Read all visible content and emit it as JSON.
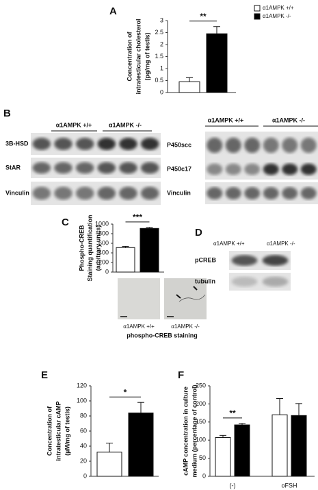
{
  "chart_data": [
    {
      "label": "A",
      "type": "bar",
      "ylabel": [
        "Concentration of",
        "intratesticular cholesterol",
        "(pg/mg of testis)"
      ],
      "categories": [
        null
      ],
      "series": [
        {
          "name": "α1AMPK +/+",
          "color": "#ffffff",
          "values": [
            0.45
          ],
          "errors": [
            0.17
          ]
        },
        {
          "name": "α1AMPK -/-",
          "color": "#000000",
          "values": [
            2.45
          ],
          "errors": [
            0.3
          ]
        }
      ],
      "ylim": [
        0,
        3
      ],
      "yticks": [
        0,
        0.5,
        1,
        1.5,
        2,
        2.5,
        3
      ],
      "significance": "**"
    },
    {
      "label": "C",
      "type": "bar",
      "ylabel": [
        "Phospho-CREB",
        "Staining quantification",
        "(arbitrary units)"
      ],
      "categories": [
        null
      ],
      "series": [
        {
          "color": "#ffffff",
          "values": [
            510
          ],
          "errors": [
            25
          ]
        },
        {
          "color": "#000000",
          "values": [
            910
          ],
          "errors": [
            20
          ]
        }
      ],
      "ylim": [
        0,
        1000
      ],
      "yticks": [
        0,
        200,
        400,
        600,
        800,
        1000
      ],
      "significance": "***"
    },
    {
      "label": "E",
      "type": "bar",
      "ylabel": [
        "Concentration of",
        "intratesticular cAMP",
        "(µM/mg of testis)"
      ],
      "categories": [
        null
      ],
      "series": [
        {
          "color": "#ffffff",
          "values": [
            32
          ],
          "errors": [
            12
          ]
        },
        {
          "color": "#000000",
          "values": [
            84
          ],
          "errors": [
            14
          ]
        }
      ],
      "ylim": [
        0,
        120
      ],
      "yticks": [
        0,
        20,
        40,
        60,
        80,
        100,
        120
      ],
      "significance": "*"
    },
    {
      "label": "F",
      "type": "bar",
      "ylabel": [
        "cAMP concentration in culture",
        "medium (percentage of control)"
      ],
      "categories": [
        "(-)",
        "oFSH"
      ],
      "series": [
        {
          "color": "#ffffff",
          "values": [
            107,
            170
          ],
          "errors": [
            6,
            45
          ]
        },
        {
          "color": "#000000",
          "values": [
            142,
            168
          ],
          "errors": [
            4,
            33
          ]
        }
      ],
      "ylim": [
        0,
        250
      ],
      "yticks": [
        0,
        50,
        100,
        150,
        200,
        250
      ],
      "significance": "**"
    }
  ],
  "blot_b": {
    "label": "B",
    "left": {
      "groups": [
        "α1AMPK +/+",
        "α1AMPK -/-"
      ],
      "rows": [
        "3B-HSD",
        "StAR",
        "Vinculin"
      ]
    },
    "right": {
      "groups": [
        "α1AMPK +/+",
        "α1AMPK -/-"
      ],
      "rows": [
        "P450scc",
        "P450c17",
        "Vinculin"
      ]
    }
  },
  "staining_c": {
    "labels": [
      "α1AMPK +/+",
      "α1AMPK -/-"
    ],
    "caption": "phospho-CREB staining"
  },
  "blot_d": {
    "label": "D",
    "groups": [
      "α1AMPK +/+",
      "α1AMPK -/-"
    ],
    "rows": [
      "pCREB",
      "tubulin"
    ]
  }
}
